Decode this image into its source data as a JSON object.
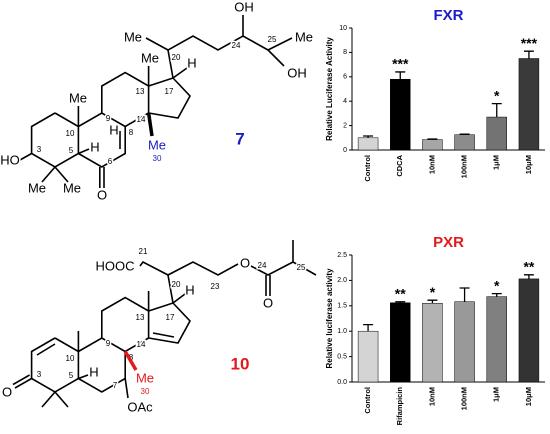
{
  "chart_data": [
    {
      "type": "bar",
      "title": "FXR",
      "title_color": "#1c1cc8",
      "y_label": "Relative Luciferase Activity",
      "categories": [
        "Control",
        "CDCA",
        "10nM",
        "100nM",
        "1μM",
        "10μM"
      ],
      "values": [
        1.0,
        5.8,
        0.85,
        1.25,
        2.7,
        7.5
      ],
      "errors": [
        0.15,
        0.6,
        0.05,
        0.05,
        1.1,
        0.6
      ],
      "significance": [
        null,
        "***",
        null,
        null,
        "*",
        "***"
      ],
      "colors": [
        "#d4d4d4",
        "#000000",
        "#a6a6a6",
        "#8c8c8c",
        "#737373",
        "#3a3a3a"
      ],
      "ylim": [
        0,
        10
      ],
      "yticks": [
        0,
        2,
        4,
        6,
        8,
        10
      ]
    },
    {
      "type": "bar",
      "title": "PXR",
      "title_color": "#e31a1c",
      "y_label": "Relative luciferase activity",
      "categories": [
        "Control",
        "Rifampicin",
        "10nM",
        "100nM",
        "1μM",
        "10μM"
      ],
      "values": [
        1.0,
        1.56,
        1.55,
        1.58,
        1.68,
        2.03
      ],
      "errors": [
        0.13,
        0.02,
        0.06,
        0.27,
        0.06,
        0.08
      ],
      "significance": [
        null,
        "**",
        "*",
        null,
        "*",
        "**"
      ],
      "colors": [
        "#d4d4d4",
        "#000000",
        "#b3b3b3",
        "#999999",
        "#808080",
        "#333333"
      ],
      "ylim": [
        0,
        2.5
      ],
      "yticks": [
        {
          "value": 0,
          "label": "0.0"
        },
        0.5,
        {
          "value": 1,
          "label": "1.0"
        },
        1.5,
        {
          "value": 2,
          "label": "2.0"
        },
        2.5
      ]
    }
  ],
  "structures": [
    {
      "number": "7",
      "number_color": "#1c1cc8",
      "labels": [
        "Me",
        "20",
        "OH",
        "24",
        "25",
        "Me",
        "OH",
        "Me",
        "13",
        "17",
        "H",
        "HO",
        "3",
        "Me",
        "10",
        "9",
        "H",
        "8",
        "14",
        "5",
        "H",
        "6",
        "O",
        "Me",
        "Me",
        "Me",
        "30"
      ]
    },
    {
      "number": "10",
      "number_color": "#e31a1c",
      "labels": [
        "HOOC",
        "21",
        "20",
        "23",
        "O",
        "24",
        "O",
        "25",
        "H",
        "17",
        "13",
        "O",
        "3",
        "10",
        "9",
        "5",
        "H",
        "7",
        "8",
        "14",
        "Me",
        "30",
        "OAc"
      ]
    }
  ]
}
